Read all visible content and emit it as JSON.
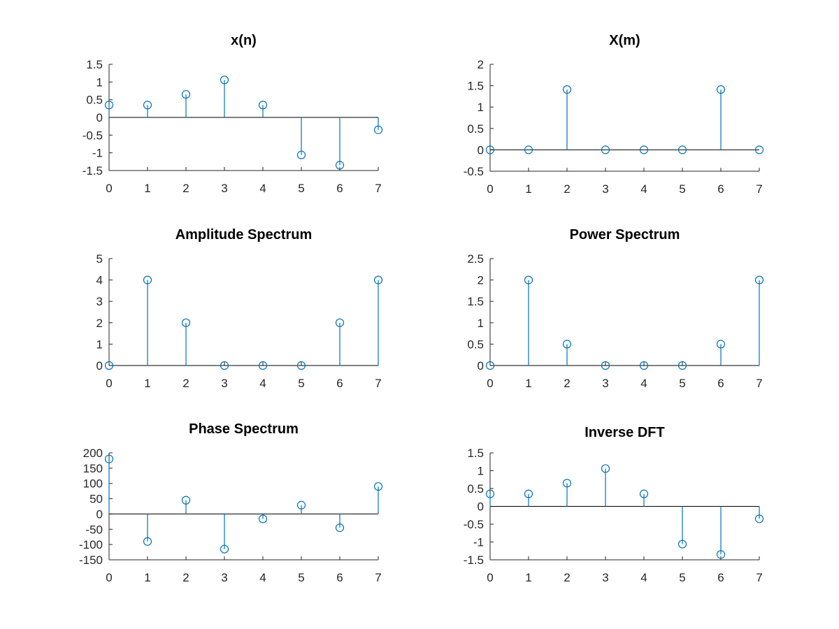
{
  "colors": {
    "series": "#0072BD",
    "axis": "#262626",
    "baseline": "#000000"
  },
  "chart_data": [
    {
      "type": "stem",
      "title": "x(n)",
      "x": [
        0,
        1,
        2,
        3,
        4,
        5,
        6,
        7
      ],
      "values": [
        0.35,
        0.35,
        0.65,
        1.06,
        0.35,
        -1.06,
        -1.35,
        -0.35
      ],
      "xlim": [
        0,
        7
      ],
      "ylim": [
        -1.5,
        1.5
      ],
      "xticks": [
        0,
        1,
        2,
        3,
        4,
        5,
        6,
        7
      ],
      "yticks": [
        -1.5,
        -1,
        -0.5,
        0,
        0.5,
        1,
        1.5
      ],
      "ytick_labels": [
        "-1.5",
        "-1",
        "-0.5",
        "0",
        "0.5",
        "1",
        "1.5"
      ]
    },
    {
      "type": "stem",
      "title": "X(m)",
      "x": [
        0,
        1,
        2,
        3,
        4,
        5,
        6,
        7
      ],
      "values": [
        0,
        0,
        1.41,
        0,
        0,
        0,
        1.41,
        0
      ],
      "xlim": [
        0,
        7
      ],
      "ylim": [
        -0.5,
        2
      ],
      "xticks": [
        0,
        1,
        2,
        3,
        4,
        5,
        6,
        7
      ],
      "yticks": [
        -0.5,
        0,
        0.5,
        1,
        1.5,
        2
      ],
      "ytick_labels": [
        "-0.5",
        "0",
        "0.5",
        "1",
        "1.5",
        "2"
      ]
    },
    {
      "type": "stem",
      "title": "Amplitude Spectrum",
      "x": [
        0,
        1,
        2,
        3,
        4,
        5,
        6,
        7
      ],
      "values": [
        0,
        4,
        2,
        0,
        0,
        0,
        2,
        4
      ],
      "xlim": [
        0,
        7
      ],
      "ylim": [
        0,
        5
      ],
      "xticks": [
        0,
        1,
        2,
        3,
        4,
        5,
        6,
        7
      ],
      "yticks": [
        0,
        1,
        2,
        3,
        4,
        5
      ],
      "ytick_labels": [
        "0",
        "1",
        "2",
        "3",
        "4",
        "5"
      ]
    },
    {
      "type": "stem",
      "title": "Power Spectrum",
      "x": [
        0,
        1,
        2,
        3,
        4,
        5,
        6,
        7
      ],
      "values": [
        0,
        2,
        0.5,
        0,
        0,
        0,
        0.5,
        2
      ],
      "xlim": [
        0,
        7
      ],
      "ylim": [
        0,
        2.5
      ],
      "xticks": [
        0,
        1,
        2,
        3,
        4,
        5,
        6,
        7
      ],
      "yticks": [
        0,
        0.5,
        1,
        1.5,
        2,
        2.5
      ],
      "ytick_labels": [
        "0",
        "0.5",
        "1",
        "1.5",
        "2",
        "2.5"
      ]
    },
    {
      "type": "stem",
      "title": "Phase Spectrum",
      "x": [
        0,
        1,
        2,
        3,
        4,
        5,
        6,
        7
      ],
      "values": [
        180,
        -90,
        45,
        -115,
        -16,
        29,
        -45,
        90
      ],
      "xlim": [
        0,
        7
      ],
      "ylim": [
        -150,
        200
      ],
      "xticks": [
        0,
        1,
        2,
        3,
        4,
        5,
        6,
        7
      ],
      "yticks": [
        -150,
        -100,
        -50,
        0,
        50,
        100,
        150,
        200
      ],
      "ytick_labels": [
        "-150",
        "-100",
        "-50",
        "0",
        "50",
        "100",
        "150",
        "200"
      ]
    },
    {
      "type": "stem",
      "title": "Inverse DFT",
      "x": [
        0,
        1,
        2,
        3,
        4,
        5,
        6,
        7
      ],
      "values": [
        0.35,
        0.35,
        0.65,
        1.06,
        0.35,
        -1.06,
        -1.35,
        -0.35
      ],
      "xlim": [
        0,
        7
      ],
      "ylim": [
        -1.5,
        1.5
      ],
      "xticks": [
        0,
        1,
        2,
        3,
        4,
        5,
        6,
        7
      ],
      "yticks": [
        -1.5,
        -1,
        -0.5,
        0,
        0.5,
        1,
        1.5
      ],
      "ytick_labels": [
        "-1.5",
        "-1",
        "-0.5",
        "0",
        "0.5",
        "1",
        "1.5"
      ]
    }
  ]
}
